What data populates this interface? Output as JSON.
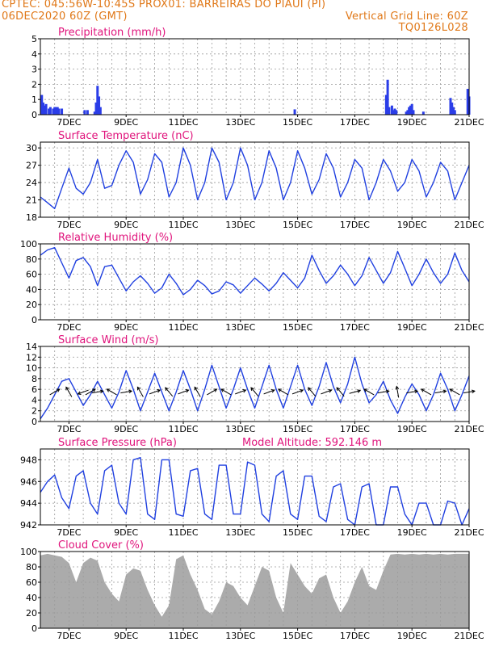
{
  "header": {
    "line1_left": "CPTEC:   045:56W-10:45S   PROX01: BARREIRAS DO PIAUI (PI)",
    "line2_left": "06DEC2020 60Z (GMT)",
    "line2_right": "Vertical Grid Line: 60Z",
    "line3_right": "TQ0126L028"
  },
  "colors": {
    "header_text": "#e07818",
    "panel_title": "#e0147c",
    "series_line": "#2040e0",
    "precip_bar": "#2a3de8",
    "cloud_fill": "#ababab",
    "grid": "#9a9a9a",
    "arrow": "#000000"
  },
  "date_ticks": [
    "7DEC",
    "9DEC",
    "11DEC",
    "13DEC",
    "15DEC",
    "17DEC",
    "19DEC",
    "21DEC"
  ],
  "chart_data": [
    {
      "type": "bar",
      "title": "Precipitation (mm/h)",
      "ylim": [
        0,
        5
      ],
      "yticks": [
        0,
        1,
        2,
        3,
        4,
        5
      ],
      "x_range": [
        6.0,
        21.0
      ],
      "grid": true,
      "x": [
        6.05,
        6.1,
        6.15,
        6.2,
        6.3,
        6.35,
        6.45,
        6.5,
        6.55,
        6.6,
        6.65,
        6.75,
        7.55,
        7.65,
        7.9,
        7.95,
        8.0,
        8.05,
        8.1,
        14.9,
        18.1,
        18.15,
        18.2,
        18.3,
        18.35,
        18.4,
        18.45,
        18.8,
        18.85,
        18.9,
        18.95,
        19.0,
        19.05,
        19.4,
        20.35,
        20.4,
        20.45,
        20.5,
        20.95,
        21.0
      ],
      "values": [
        1.3,
        0.8,
        0.6,
        0.7,
        0.4,
        0.5,
        0.4,
        0.5,
        0.5,
        0.5,
        0.4,
        0.4,
        0.3,
        0.3,
        0.2,
        0.8,
        1.9,
        1.2,
        0.5,
        0.35,
        1.3,
        2.3,
        0.5,
        0.6,
        0.3,
        0.4,
        0.3,
        0.2,
        0.3,
        0.5,
        0.6,
        0.7,
        0.3,
        0.2,
        1.1,
        0.8,
        0.5,
        0.3,
        1.7,
        1.2
      ]
    },
    {
      "type": "line",
      "title": "Surface Temperature (nC)",
      "ylim": [
        18,
        31
      ],
      "yticks": [
        18,
        21,
        24,
        27,
        30
      ],
      "x_range": [
        6.0,
        21.0
      ],
      "grid": true,
      "x": [
        6.0,
        6.25,
        6.5,
        6.75,
        7.0,
        7.25,
        7.5,
        7.75,
        8.0,
        8.25,
        8.5,
        8.75,
        9.0,
        9.25,
        9.5,
        9.75,
        10.0,
        10.25,
        10.5,
        10.75,
        11.0,
        11.25,
        11.5,
        11.75,
        12.0,
        12.25,
        12.5,
        12.75,
        13.0,
        13.25,
        13.5,
        13.75,
        14.0,
        14.25,
        14.5,
        14.75,
        15.0,
        15.25,
        15.5,
        15.75,
        16.0,
        16.25,
        16.5,
        16.75,
        17.0,
        17.25,
        17.5,
        17.75,
        18.0,
        18.25,
        18.5,
        18.75,
        19.0,
        19.25,
        19.5,
        19.75,
        20.0,
        20.25,
        20.5,
        20.75,
        21.0
      ],
      "values": [
        21.5,
        20.5,
        19.5,
        23.0,
        26.5,
        23.0,
        22.0,
        24.0,
        28.0,
        23.0,
        23.5,
        27.0,
        29.5,
        27.5,
        22.0,
        24.5,
        29.0,
        27.5,
        21.5,
        24.0,
        30.0,
        27.0,
        21.0,
        24.0,
        30.0,
        27.5,
        21.0,
        24.0,
        30.0,
        27.0,
        21.0,
        24.0,
        29.5,
        26.5,
        21.0,
        24.0,
        29.5,
        26.5,
        22.0,
        24.5,
        29.0,
        26.5,
        21.5,
        24.0,
        28.0,
        26.5,
        21.0,
        24.0,
        28.0,
        26.0,
        22.5,
        24.0,
        28.0,
        26.0,
        21.5,
        24.0,
        27.5,
        26.0,
        21.0,
        24.0,
        27.0
      ]
    },
    {
      "type": "line",
      "title": "Relative Humidity (%)",
      "ylim": [
        0,
        100
      ],
      "yticks": [
        0,
        20,
        40,
        60,
        80,
        100
      ],
      "x_range": [
        6.0,
        21.0
      ],
      "grid": true,
      "x": [
        6.0,
        6.25,
        6.5,
        6.75,
        7.0,
        7.25,
        7.5,
        7.75,
        8.0,
        8.25,
        8.5,
        8.75,
        9.0,
        9.25,
        9.5,
        9.75,
        10.0,
        10.25,
        10.5,
        10.75,
        11.0,
        11.25,
        11.5,
        11.75,
        12.0,
        12.25,
        12.5,
        12.75,
        13.0,
        13.25,
        13.5,
        13.75,
        14.0,
        14.25,
        14.5,
        14.75,
        15.0,
        15.25,
        15.5,
        15.75,
        16.0,
        16.25,
        16.5,
        16.75,
        17.0,
        17.25,
        17.5,
        17.75,
        18.0,
        18.25,
        18.5,
        18.75,
        19.0,
        19.25,
        19.5,
        19.75,
        20.0,
        20.25,
        20.5,
        20.75,
        21.0
      ],
      "values": [
        85,
        92,
        95,
        75,
        55,
        78,
        82,
        70,
        45,
        70,
        72,
        55,
        38,
        50,
        58,
        48,
        35,
        42,
        60,
        48,
        33,
        40,
        52,
        45,
        34,
        38,
        50,
        46,
        35,
        45,
        55,
        47,
        38,
        48,
        62,
        52,
        42,
        55,
        85,
        65,
        48,
        58,
        72,
        60,
        45,
        58,
        82,
        65,
        48,
        62,
        90,
        68,
        45,
        60,
        80,
        62,
        48,
        60,
        88,
        65,
        50
      ]
    },
    {
      "type": "line",
      "title": "Surface Wind (m/s)",
      "ylim": [
        0,
        14
      ],
      "yticks": [
        0,
        2,
        4,
        6,
        8,
        10,
        12,
        14
      ],
      "x_range": [
        6.0,
        21.0
      ],
      "grid": true,
      "x": [
        6.0,
        6.25,
        6.5,
        6.75,
        7.0,
        7.25,
        7.5,
        7.75,
        8.0,
        8.25,
        8.5,
        8.75,
        9.0,
        9.25,
        9.5,
        9.75,
        10.0,
        10.25,
        10.5,
        10.75,
        11.0,
        11.25,
        11.5,
        11.75,
        12.0,
        12.25,
        12.5,
        12.75,
        13.0,
        13.25,
        13.5,
        13.75,
        14.0,
        14.25,
        14.5,
        14.75,
        15.0,
        15.25,
        15.5,
        15.75,
        16.0,
        16.25,
        16.5,
        16.75,
        17.0,
        17.25,
        17.5,
        17.75,
        18.0,
        18.25,
        18.5,
        18.75,
        19.0,
        19.25,
        19.5,
        19.75,
        20.0,
        20.25,
        20.5,
        20.75,
        21.0
      ],
      "values": [
        0.5,
        2.5,
        5.0,
        7.5,
        8.0,
        5.5,
        3.0,
        5.0,
        7.5,
        5.0,
        2.5,
        5.5,
        9.5,
        6.0,
        2.0,
        5.5,
        9.0,
        5.5,
        2.0,
        5.5,
        9.5,
        6.0,
        2.0,
        6.0,
        10.5,
        6.5,
        2.5,
        6.0,
        10.0,
        6.0,
        2.5,
        6.5,
        10.5,
        6.0,
        2.5,
        6.5,
        10.5,
        6.0,
        3.0,
        6.5,
        11.0,
        6.5,
        3.5,
        7.0,
        12.0,
        7.0,
        3.5,
        5.0,
        7.5,
        4.0,
        1.5,
        4.5,
        7.0,
        5.0,
        2.0,
        5.0,
        9.0,
        6.0,
        2.0,
        5.0,
        8.5
      ],
      "wind_arrows": {
        "x": [
          6.5,
          7.0,
          7.5,
          7.75,
          8.0,
          8.5,
          9.0,
          9.5,
          10.0,
          10.5,
          11.0,
          11.5,
          12.0,
          12.5,
          13.0,
          13.5,
          14.0,
          14.5,
          15.0,
          15.5,
          16.0,
          16.5,
          17.0,
          17.5,
          18.0,
          18.5,
          19.0,
          19.5,
          20.0,
          20.5,
          21.0
        ],
        "direction_deg": [
          60,
          330,
          250,
          60,
          80,
          300,
          80,
          330,
          70,
          320,
          70,
          330,
          60,
          300,
          70,
          320,
          70,
          300,
          70,
          320,
          70,
          320,
          75,
          300,
          80,
          350,
          80,
          300,
          80,
          300,
          80
        ]
      }
    },
    {
      "type": "line",
      "title": "Surface Pressure (hPa)",
      "annotation": "Model Altitude: 592.146 m",
      "ylim": [
        942,
        949
      ],
      "yticks": [
        942,
        944,
        946,
        948
      ],
      "x_range": [
        6.0,
        21.0
      ],
      "grid": true,
      "x": [
        6.0,
        6.25,
        6.5,
        6.75,
        7.0,
        7.25,
        7.5,
        7.75,
        8.0,
        8.25,
        8.5,
        8.75,
        9.0,
        9.25,
        9.5,
        9.75,
        10.0,
        10.25,
        10.5,
        10.75,
        11.0,
        11.25,
        11.5,
        11.75,
        12.0,
        12.25,
        12.5,
        12.75,
        13.0,
        13.25,
        13.5,
        13.75,
        14.0,
        14.25,
        14.5,
        14.75,
        15.0,
        15.25,
        15.5,
        15.75,
        16.0,
        16.25,
        16.5,
        16.75,
        17.0,
        17.25,
        17.5,
        17.75,
        18.0,
        18.25,
        18.5,
        18.75,
        19.0,
        19.25,
        19.5,
        19.75,
        20.0,
        20.25,
        20.5,
        20.75,
        21.0
      ],
      "values": [
        945.0,
        946.0,
        946.6,
        944.5,
        943.5,
        946.5,
        947.0,
        944.0,
        943.0,
        947.0,
        947.5,
        944.0,
        943.0,
        948.0,
        948.2,
        943.0,
        942.5,
        948.0,
        948.0,
        943.0,
        942.8,
        947.0,
        947.2,
        943.0,
        942.5,
        947.5,
        947.5,
        943.0,
        943.0,
        947.8,
        947.5,
        943.0,
        942.3,
        946.5,
        947.0,
        943.0,
        942.5,
        946.5,
        946.5,
        942.8,
        942.3,
        945.5,
        945.8,
        942.5,
        942.0,
        945.5,
        945.8,
        942.0,
        942.0,
        945.5,
        945.5,
        943.0,
        942.0,
        944.0,
        944.0,
        942.0,
        942.0,
        944.2,
        944.0,
        942.0,
        943.5
      ]
    },
    {
      "type": "area",
      "title": "Cloud Cover (%)",
      "ylim": [
        0,
        100
      ],
      "yticks": [
        0,
        20,
        40,
        60,
        80,
        100
      ],
      "x_range": [
        6.0,
        21.0
      ],
      "grid": true,
      "x": [
        6.0,
        6.25,
        6.5,
        6.75,
        7.0,
        7.25,
        7.5,
        7.75,
        8.0,
        8.25,
        8.5,
        8.75,
        9.0,
        9.25,
        9.5,
        9.75,
        10.0,
        10.25,
        10.5,
        10.75,
        11.0,
        11.25,
        11.5,
        11.75,
        12.0,
        12.25,
        12.5,
        12.75,
        13.0,
        13.25,
        13.5,
        13.75,
        14.0,
        14.25,
        14.5,
        14.75,
        15.0,
        15.25,
        15.5,
        15.75,
        16.0,
        16.25,
        16.5,
        16.75,
        17.0,
        17.25,
        17.5,
        17.75,
        18.0,
        18.25,
        18.5,
        18.75,
        19.0,
        19.25,
        19.5,
        19.75,
        20.0,
        20.25,
        20.5,
        20.75,
        21.0
      ],
      "values": [
        95,
        97,
        95,
        93,
        85,
        60,
        85,
        92,
        88,
        60,
        45,
        35,
        70,
        78,
        75,
        50,
        30,
        15,
        30,
        90,
        95,
        70,
        50,
        25,
        18,
        35,
        60,
        55,
        40,
        30,
        55,
        80,
        75,
        40,
        20,
        85,
        70,
        55,
        45,
        65,
        70,
        40,
        20,
        35,
        60,
        80,
        55,
        50,
        75,
        96,
        97,
        96,
        97,
        96,
        97,
        96,
        97,
        96,
        97,
        97,
        97
      ]
    }
  ]
}
